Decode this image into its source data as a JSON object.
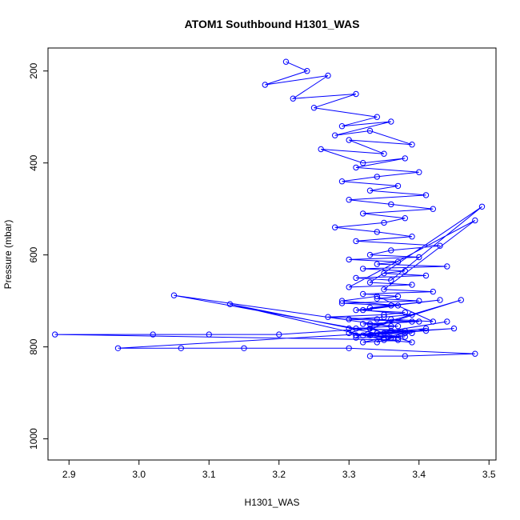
{
  "chart_data": {
    "type": "line",
    "title": "ATOM1 Southbound H1301_WAS",
    "xlabel": "H1301_WAS",
    "ylabel": "Pressure (mbar)",
    "xlim": [
      2.87,
      3.51
    ],
    "ylim": [
      1046,
      150
    ],
    "y_reversed": true,
    "x_ticks": [
      2.9,
      3.0,
      3.1,
      3.2,
      3.3,
      3.4,
      3.5
    ],
    "y_ticks": [
      200,
      400,
      600,
      800,
      1000
    ],
    "grid": false,
    "legend": "none",
    "series": [
      {
        "color": "#0000ff",
        "markers": "open-circle",
        "x": [
          3.21,
          3.24,
          3.18,
          3.27,
          3.22,
          3.31,
          3.25,
          3.34,
          3.29,
          3.36,
          3.28,
          3.33,
          3.39,
          3.3,
          3.35,
          3.26,
          3.32,
          3.38,
          3.31,
          3.4,
          3.34,
          3.29,
          3.37,
          3.33,
          3.41,
          3.3,
          3.36,
          3.42,
          3.32,
          3.38,
          3.35,
          3.28,
          3.34,
          3.39,
          3.31,
          3.43,
          3.36,
          3.33,
          3.4,
          3.3,
          3.37,
          3.34,
          3.44,
          3.32,
          3.38,
          3.35,
          3.41,
          3.31,
          3.36,
          3.49,
          3.33,
          3.39,
          3.3,
          3.48,
          3.35,
          3.42,
          3.32,
          3.37,
          3.34,
          3.4,
          3.29,
          3.36,
          3.33,
          3.43,
          3.31,
          3.38,
          3.35,
          3.27,
          3.34,
          3.39,
          3.32,
          3.37,
          3.3,
          3.41,
          3.35,
          3.33,
          3.38,
          3.31,
          3.36,
          3.42,
          3.34,
          3.29,
          3.37,
          3.32,
          3.39,
          3.35,
          3.3,
          3.4,
          3.33,
          3.36,
          3.05,
          3.31,
          3.38,
          3.34,
          3.44,
          3.32,
          3.37,
          3.13,
          3.35,
          3.39,
          3.33,
          3.46,
          3.3,
          3.36,
          3.34,
          3.41,
          3.31,
          3.38,
          3.35,
          3.32,
          3.37,
          2.88,
          3.02,
          3.1,
          3.2,
          3.33,
          3.39,
          3.36,
          3.31,
          3.45,
          3.34,
          2.97,
          3.06,
          3.15,
          3.3,
          3.48,
          3.38,
          3.33
        ],
        "y": [
          180,
          200,
          230,
          210,
          260,
          250,
          280,
          300,
          320,
          310,
          340,
          330,
          360,
          350,
          380,
          370,
          400,
          390,
          410,
          420,
          430,
          440,
          450,
          460,
          470,
          480,
          490,
          500,
          510,
          520,
          530,
          540,
          550,
          560,
          570,
          580,
          590,
          600,
          605,
          610,
          615,
          620,
          625,
          630,
          635,
          640,
          645,
          650,
          655,
          495,
          660,
          665,
          670,
          525,
          675,
          680,
          685,
          690,
          695,
          700,
          705,
          710,
          715,
          698,
          720,
          725,
          730,
          735,
          740,
          745,
          750,
          755,
          760,
          765,
          770,
          775,
          778,
          780,
          740,
          745,
          690,
          700,
          710,
          720,
          730,
          735,
          740,
          745,
          750,
          755,
          688,
          760,
          765,
          770,
          745,
          775,
          780,
          707,
          785,
          790,
          760,
          698,
          770,
          780,
          790,
          760,
          775,
          770,
          780,
          790,
          785,
          773,
          773,
          773,
          773,
          760,
          770,
          765,
          775,
          760,
          770,
          803,
          803,
          803,
          803,
          815,
          820,
          820
        ]
      }
    ]
  }
}
